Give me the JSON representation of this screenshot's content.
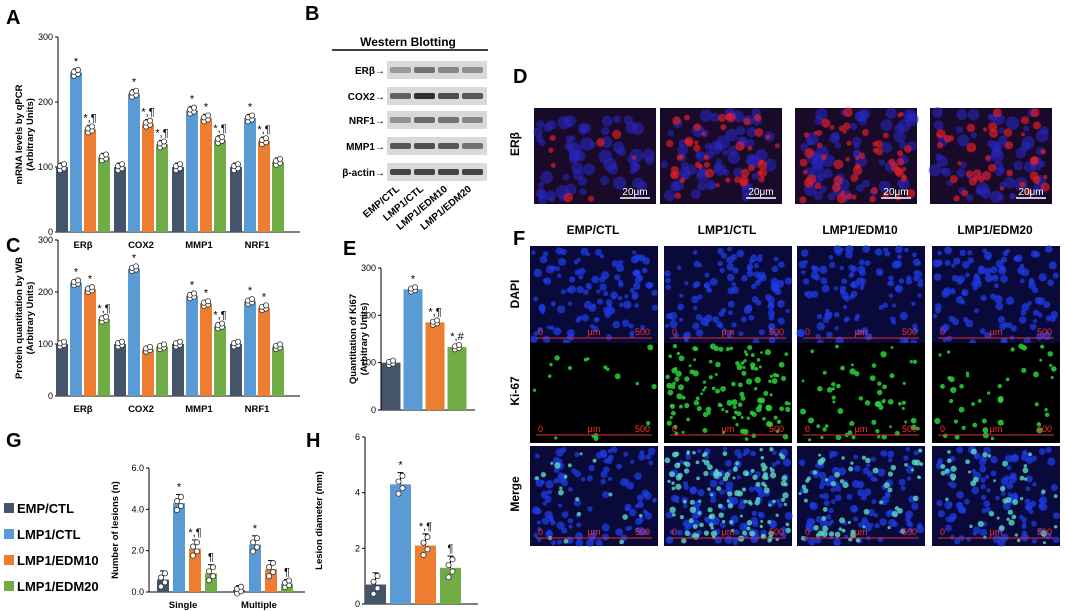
{
  "colors": {
    "EMP/CTL": "#44546a",
    "LMP1/CTL": "#5b9bd5",
    "LMP1/EDM10": "#ed7d31",
    "LMP1/EDM20": "#70ad47"
  },
  "legend": [
    "EMP/CTL",
    "LMP1/CTL",
    "LMP1/EDM10",
    "LMP1/EDM20"
  ],
  "panels": {
    "A": "A",
    "B": "B",
    "C": "C",
    "D": "D",
    "E": "E",
    "F": "F",
    "G": "G",
    "H": "H"
  },
  "western": {
    "title": "Western Blotting",
    "rows": [
      "ERβ→",
      "COX2→",
      "NRF1→",
      "MMP1→",
      "β-actin→"
    ],
    "lanes": [
      "EMP/CTL",
      "LMP1/CTL",
      "LMP1/EDM10",
      "LMP1/EDM20"
    ]
  },
  "panel_d": {
    "row_label": "ERβ",
    "scale_bar": "20μm"
  },
  "panel_f": {
    "columns": [
      "EMP/CTL",
      "LMP1/CTL",
      "LMP1/EDM10",
      "LMP1/EDM20"
    ],
    "rows": [
      "DAPI",
      "Ki-67",
      "Merge"
    ],
    "scale_start": "0",
    "scale_unit": "μm",
    "scale_end": "500"
  },
  "chart_data": [
    {
      "panel": "A",
      "type": "bar",
      "ylabel": "mRNA levels by qPCR (Arbitrary Units)",
      "ylim": [
        0,
        300
      ],
      "yticks": [
        "0",
        "100",
        "200",
        "300"
      ],
      "categories": [
        "ERβ",
        "COX2",
        "MMP1",
        "NRF1"
      ],
      "series": [
        {
          "name": "EMP/CTL",
          "values": [
            100,
            100,
            100,
            100
          ]
        },
        {
          "name": "LMP1/CTL",
          "values": [
            245,
            213,
            187,
            175
          ]
        },
        {
          "name": "LMP1/EDM10",
          "values": [
            158,
            167,
            175,
            140
          ]
        },
        {
          "name": "LMP1/EDM20",
          "values": [
            115,
            135,
            142,
            108
          ]
        }
      ],
      "annotations": [
        [
          "",
          "*",
          "*,¶",
          ""
        ],
        [
          "",
          "*",
          "*,¶",
          "*,¶"
        ],
        [
          "",
          "*",
          "*",
          "*,¶"
        ],
        [
          "",
          "*",
          "*,¶",
          ""
        ]
      ],
      "grid": false
    },
    {
      "panel": "C",
      "type": "bar",
      "ylabel": "Protein quantitation by WB (Arbitrary Units)",
      "ylim": [
        0,
        300
      ],
      "yticks": [
        "0",
        "100",
        "200",
        "300"
      ],
      "categories": [
        "ERβ",
        "COX2",
        "MMP1",
        "NRF1"
      ],
      "series": [
        {
          "name": "EMP/CTL",
          "values": [
            100,
            100,
            100,
            100
          ]
        },
        {
          "name": "LMP1/CTL",
          "values": [
            218,
            245,
            193,
            182
          ]
        },
        {
          "name": "LMP1/EDM10",
          "values": [
            205,
            90,
            178,
            170
          ]
        },
        {
          "name": "LMP1/EDM20",
          "values": [
            148,
            95,
            135,
            95
          ]
        }
      ],
      "annotations": [
        [
          "",
          "*",
          "*",
          "*,¶"
        ],
        [
          "",
          "*",
          "",
          ""
        ],
        [
          "",
          "*",
          "*",
          "*,¶"
        ],
        [
          "",
          "*",
          "*",
          ""
        ]
      ],
      "grid": false
    },
    {
      "panel": "E",
      "type": "bar",
      "ylabel": "Quantitation of Ki67 (Arbitrary Units)",
      "ylim": [
        0,
        300
      ],
      "yticks": [
        "0",
        "100",
        "200",
        "300"
      ],
      "categories": [
        ""
      ],
      "series": [
        {
          "name": "EMP/CTL",
          "values": [
            100
          ]
        },
        {
          "name": "LMP1/CTL",
          "values": [
            255
          ]
        },
        {
          "name": "LMP1/EDM10",
          "values": [
            185
          ]
        },
        {
          "name": "LMP1/EDM20",
          "values": [
            133
          ]
        }
      ],
      "annotations": [
        [
          "",
          "*",
          "*,¶",
          "*,#"
        ]
      ],
      "grid": false
    },
    {
      "panel": "G",
      "type": "bar",
      "ylabel": "Number of lesions (n)",
      "ylim": [
        0,
        6
      ],
      "yticks": [
        "0.0",
        "2.0",
        "4.0",
        "6.0"
      ],
      "categories": [
        "Single",
        "Multiple"
      ],
      "series": [
        {
          "name": "EMP/CTL",
          "values": [
            0.6,
            0.1
          ]
        },
        {
          "name": "LMP1/CTL",
          "values": [
            4.3,
            2.3
          ]
        },
        {
          "name": "LMP1/EDM10",
          "values": [
            2.1,
            1.1
          ]
        },
        {
          "name": "LMP1/EDM20",
          "values": [
            0.9,
            0.4
          ]
        }
      ],
      "annotations": [
        [
          "",
          "*",
          "*,¶",
          "¶"
        ],
        [
          "",
          "*",
          "",
          "¶"
        ]
      ],
      "grid": false
    },
    {
      "panel": "H",
      "type": "bar",
      "ylabel": "Lesion diameter (mm)",
      "ylim": [
        0,
        6
      ],
      "yticks": [
        "0",
        "2",
        "4",
        "6"
      ],
      "categories": [
        ""
      ],
      "series": [
        {
          "name": "EMP/CTL",
          "values": [
            0.7
          ]
        },
        {
          "name": "LMP1/CTL",
          "values": [
            4.3
          ]
        },
        {
          "name": "LMP1/EDM10",
          "values": [
            2.1
          ]
        },
        {
          "name": "LMP1/EDM20",
          "values": [
            1.3
          ]
        }
      ],
      "annotations": [
        [
          "",
          "*",
          "*,¶",
          "¶"
        ]
      ],
      "grid": false
    }
  ]
}
